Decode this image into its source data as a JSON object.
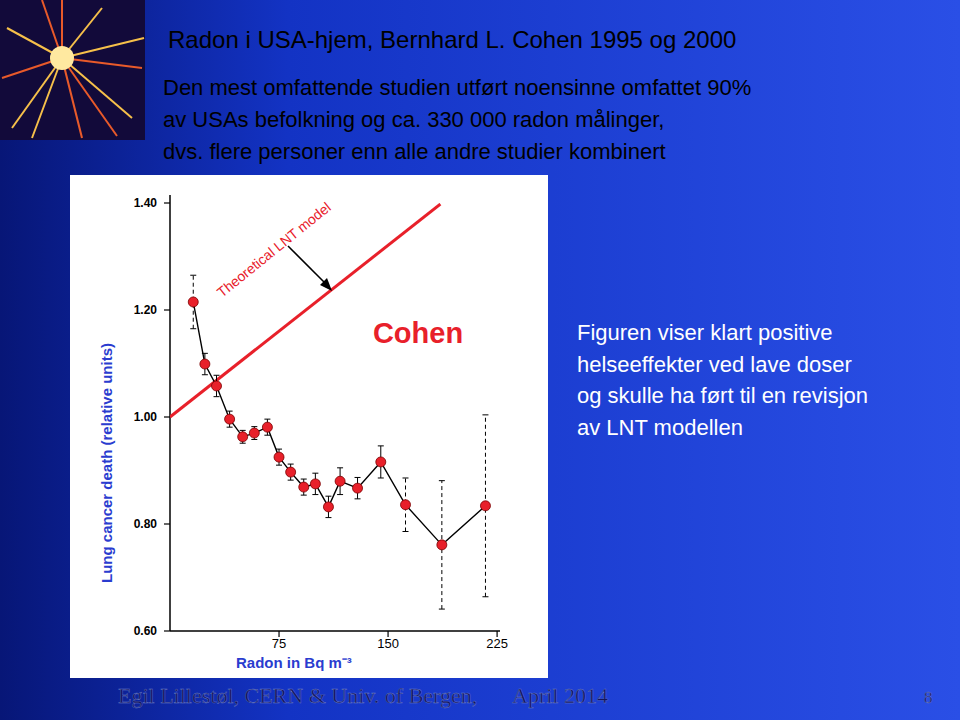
{
  "slide": {
    "title": "Radon i USA-hjem, Bernhard L. Cohen 1995 og 2000",
    "intro": [
      "Den mest omfattende studien utført noensinne omfattet 90%",
      "av USAs befolkning og ca. 330 000 radon målinger,",
      "dvs. flere personer enn alle andre studier kombinert"
    ],
    "note": [
      "Figuren viser klart positive",
      "helseeffekter ved lave doser",
      "og skulle ha ført til en revisjon",
      "av LNT modellen"
    ],
    "footer": {
      "author": "Egil Lillestøl, CERN & Univ. of Bergen,",
      "date": "April 2014",
      "page": "8"
    }
  },
  "chart_data": {
    "type": "line",
    "x_label": "Radon in Bq m⁻³",
    "y_label": "Lung cancer death (relative units)",
    "xlim": [
      0,
      227
    ],
    "ylim": [
      0.6,
      1.4
    ],
    "xticks": [
      75,
      150,
      225
    ],
    "yticks": [
      {
        "value": 0.6,
        "label": "0.60"
      },
      {
        "value": 0.8,
        "label": "0.80"
      },
      {
        "value": 1.0,
        "label": "1.00"
      },
      {
        "value": 1.2,
        "label": "1.20"
      },
      {
        "value": 1.4,
        "label": "1.40"
      }
    ],
    "series": [
      {
        "name": "Cohen",
        "color": "#e8202a",
        "marker": "circle",
        "line_style": "solid",
        "x": [
          16,
          24,
          32,
          41,
          50,
          58,
          67,
          75,
          83,
          92,
          100,
          109,
          117,
          129,
          145,
          162,
          187,
          217
        ],
        "values": [
          1.215,
          1.099,
          1.058,
          0.996,
          0.963,
          0.97,
          0.981,
          0.925,
          0.897,
          0.869,
          0.875,
          0.832,
          0.88,
          0.867,
          0.916,
          0.836,
          0.761,
          0.834
        ],
        "errors": [
          0.05,
          0.02,
          0.02,
          0.015,
          0.012,
          0.012,
          0.015,
          0.015,
          0.015,
          0.015,
          0.02,
          0.02,
          0.025,
          0.02,
          0.03,
          0.05,
          0.12,
          0.17
        ]
      },
      {
        "name": "Theoretical LNT model",
        "color": "#e8202a",
        "marker": "none",
        "line_style": "solid",
        "x": [
          0,
          186
        ],
        "values": [
          1.0,
          1.398
        ]
      }
    ]
  }
}
